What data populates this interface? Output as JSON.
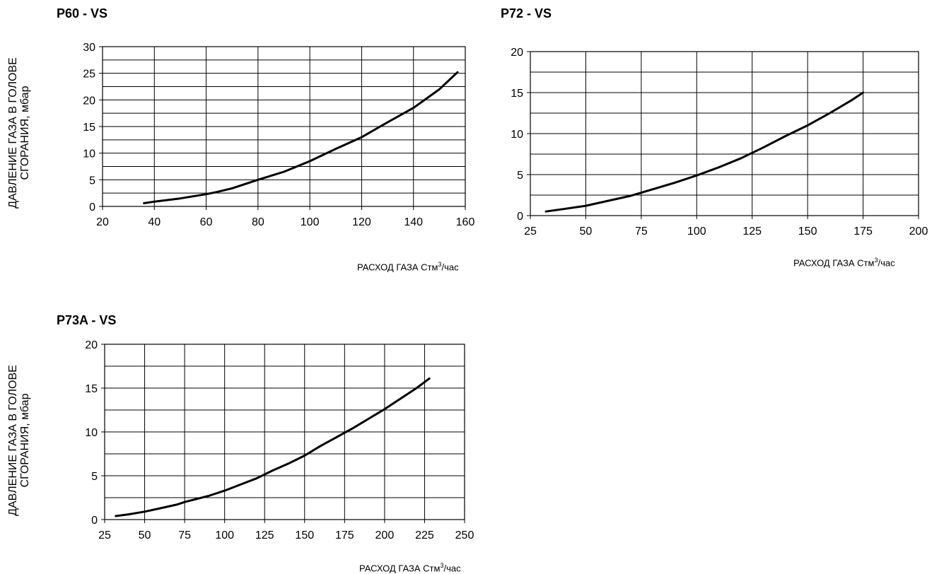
{
  "chart_data": [
    {
      "type": "line",
      "title": "P60 - VS",
      "ylabel_line1": "ДАВЛЕНИЕ ГАЗА В ГОЛОВЕ",
      "ylabel_line2": "СГОРАНИЯ, мбар",
      "xlabel_main": "РАСХОД ГАЗА Стм",
      "xlabel_sup": "3",
      "xlabel_tail": "/час",
      "xlim": [
        20,
        160
      ],
      "ylim": [
        0,
        30
      ],
      "xticks": [
        "20",
        "40",
        "60",
        "80",
        "100",
        "120",
        "140",
        "160"
      ],
      "yticks": [
        "0",
        "5",
        "10",
        "15",
        "20",
        "25",
        "30"
      ],
      "grid": true,
      "series": [
        {
          "x": [
            36,
            40,
            50,
            60,
            64,
            70,
            80,
            90,
            100,
            110,
            120,
            130,
            140,
            150,
            157
          ],
          "y": [
            0.6,
            0.9,
            1.5,
            2.3,
            2.7,
            3.4,
            5.0,
            6.5,
            8.5,
            10.8,
            13.0,
            15.8,
            18.5,
            22.0,
            25.2
          ]
        }
      ]
    },
    {
      "type": "line",
      "title": "P72 - VS",
      "ylabel_line1": "",
      "ylabel_line2": "",
      "xlabel_main": "РАСХОД ГАЗА Стм",
      "xlabel_sup": "3",
      "xlabel_tail": "/час",
      "xlim": [
        25,
        200
      ],
      "ylim": [
        0,
        20
      ],
      "xticks": [
        "25",
        "50",
        "75",
        "100",
        "125",
        "150",
        "175",
        "200"
      ],
      "yticks": [
        "0",
        "5",
        "10",
        "15",
        "20"
      ],
      "grid": true,
      "series": [
        {
          "x": [
            32,
            40,
            50,
            60,
            70,
            80,
            90,
            100,
            110,
            120,
            130,
            140,
            150,
            160,
            170,
            175
          ],
          "y": [
            0.5,
            0.8,
            1.2,
            1.8,
            2.4,
            3.2,
            4.0,
            4.9,
            5.9,
            7.0,
            8.3,
            9.7,
            11.0,
            12.5,
            14.1,
            15.0
          ]
        }
      ]
    },
    {
      "type": "line",
      "title": "P73A - VS",
      "ylabel_line1": "ДАВЛЕНИЕ ГАЗА В ГОЛОВЕ",
      "ylabel_line2": "СГОРАНИЯ, мбар",
      "xlabel_main": "РАСХОД ГАЗА Стм",
      "xlabel_sup": "3",
      "xlabel_tail": "/час",
      "xlim": [
        25,
        250
      ],
      "ylim": [
        0,
        20
      ],
      "xticks": [
        "25",
        "50",
        "75",
        "100",
        "125",
        "150",
        "175",
        "200",
        "225",
        "250"
      ],
      "yticks": [
        "0",
        "5",
        "10",
        "15",
        "20"
      ],
      "grid": true,
      "series": [
        {
          "x": [
            32,
            40,
            50,
            60,
            70,
            75,
            90,
            100,
            110,
            120,
            130,
            140,
            150,
            160,
            170,
            180,
            190,
            200,
            210,
            220,
            228
          ],
          "y": [
            0.4,
            0.6,
            0.9,
            1.3,
            1.7,
            2.0,
            2.7,
            3.3,
            4.0,
            4.7,
            5.6,
            6.4,
            7.3,
            8.4,
            9.4,
            10.4,
            11.5,
            12.6,
            13.8,
            15.0,
            16.1
          ]
        }
      ]
    }
  ]
}
